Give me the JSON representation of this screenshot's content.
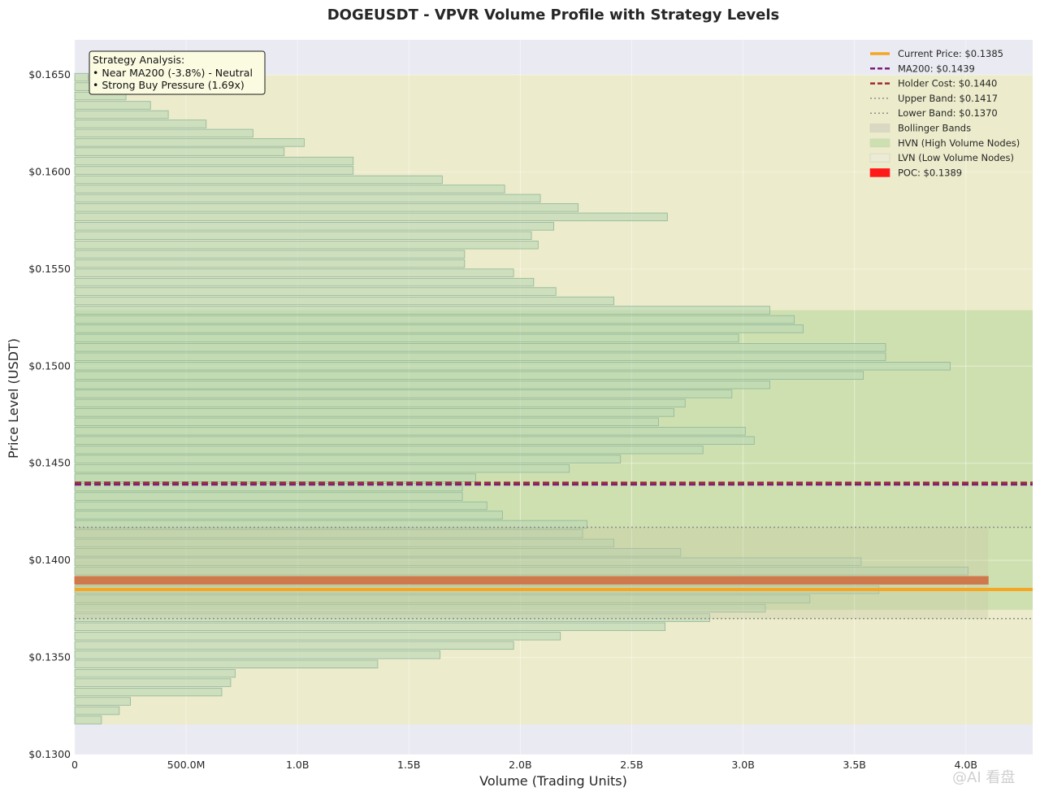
{
  "chart_data": {
    "type": "bar",
    "orientation": "horizontal",
    "title": "DOGEUSDT - VPVR Volume Profile with Strategy Levels",
    "xlabel": "Volume (Trading Units)",
    "ylabel": "Price Level (USDT)",
    "xlim": [
      0,
      4.3
    ],
    "ylim": [
      0.13,
      0.1668
    ],
    "x_ticks": [
      {
        "value": 0,
        "label": "0"
      },
      {
        "value": 0.5,
        "label": "500.0M"
      },
      {
        "value": 1.0,
        "label": "1.0B"
      },
      {
        "value": 1.5,
        "label": "1.5B"
      },
      {
        "value": 2.0,
        "label": "2.0B"
      },
      {
        "value": 2.5,
        "label": "2.5B"
      },
      {
        "value": 3.0,
        "label": "3.0B"
      },
      {
        "value": 3.5,
        "label": "3.5B"
      },
      {
        "value": 4.0,
        "label": "4.0B"
      }
    ],
    "y_ticks": [
      {
        "value": 0.13,
        "label": "$0.1300"
      },
      {
        "value": 0.135,
        "label": "$0.1350"
      },
      {
        "value": 0.14,
        "label": "$0.1400"
      },
      {
        "value": 0.145,
        "label": "$0.1450"
      },
      {
        "value": 0.15,
        "label": "$0.1500"
      },
      {
        "value": 0.155,
        "label": "$0.1550"
      },
      {
        "value": 0.16,
        "label": "$0.1600"
      },
      {
        "value": 0.165,
        "label": "$0.1650"
      }
    ],
    "volume_unit": "billions",
    "bin_size": 0.000479,
    "bins": [
      {
        "price": 0.13178,
        "volume": 0.12
      },
      {
        "price": 0.13226,
        "volume": 0.2
      },
      {
        "price": 0.13274,
        "volume": 0.25
      },
      {
        "price": 0.13322,
        "volume": 0.66
      },
      {
        "price": 0.1337,
        "volume": 0.7
      },
      {
        "price": 0.13418,
        "volume": 0.72
      },
      {
        "price": 0.13466,
        "volume": 1.36
      },
      {
        "price": 0.13514,
        "volume": 1.64
      },
      {
        "price": 0.13562,
        "volume": 1.97
      },
      {
        "price": 0.1361,
        "volume": 2.18
      },
      {
        "price": 0.13658,
        "volume": 2.65
      },
      {
        "price": 0.13705,
        "volume": 2.85
      },
      {
        "price": 0.13753,
        "volume": 3.1
      },
      {
        "price": 0.13801,
        "volume": 3.3
      },
      {
        "price": 0.13849,
        "volume": 3.61
      },
      {
        "price": 0.13897,
        "volume": 4.1,
        "poc": true
      },
      {
        "price": 0.13945,
        "volume": 4.01
      },
      {
        "price": 0.13993,
        "volume": 3.53
      },
      {
        "price": 0.14041,
        "volume": 2.72
      },
      {
        "price": 0.14089,
        "volume": 2.42
      },
      {
        "price": 0.14137,
        "volume": 2.28
      },
      {
        "price": 0.14185,
        "volume": 2.3
      },
      {
        "price": 0.14233,
        "volume": 1.92
      },
      {
        "price": 0.14281,
        "volume": 1.85
      },
      {
        "price": 0.14329,
        "volume": 1.74
      },
      {
        "price": 0.14377,
        "volume": 1.74
      },
      {
        "price": 0.14425,
        "volume": 1.8
      },
      {
        "price": 0.14473,
        "volume": 2.22
      },
      {
        "price": 0.14521,
        "volume": 2.45
      },
      {
        "price": 0.14569,
        "volume": 2.82
      },
      {
        "price": 0.14617,
        "volume": 3.05
      },
      {
        "price": 0.14665,
        "volume": 3.01
      },
      {
        "price": 0.14713,
        "volume": 2.62
      },
      {
        "price": 0.14761,
        "volume": 2.69
      },
      {
        "price": 0.14809,
        "volume": 2.74
      },
      {
        "price": 0.14857,
        "volume": 2.95
      },
      {
        "price": 0.14904,
        "volume": 3.12
      },
      {
        "price": 0.14952,
        "volume": 3.54
      },
      {
        "price": 0.15,
        "volume": 3.93
      },
      {
        "price": 0.15048,
        "volume": 3.64
      },
      {
        "price": 0.15096,
        "volume": 3.64
      },
      {
        "price": 0.15144,
        "volume": 2.98
      },
      {
        "price": 0.15192,
        "volume": 3.27
      },
      {
        "price": 0.1524,
        "volume": 3.23
      },
      {
        "price": 0.15288,
        "volume": 3.12
      },
      {
        "price": 0.15336,
        "volume": 2.42
      },
      {
        "price": 0.15384,
        "volume": 2.16
      },
      {
        "price": 0.15432,
        "volume": 2.06
      },
      {
        "price": 0.1548,
        "volume": 1.97
      },
      {
        "price": 0.15528,
        "volume": 1.75
      },
      {
        "price": 0.15576,
        "volume": 1.75
      },
      {
        "price": 0.15624,
        "volume": 2.08
      },
      {
        "price": 0.15672,
        "volume": 2.05
      },
      {
        "price": 0.1572,
        "volume": 2.15
      },
      {
        "price": 0.15768,
        "volume": 2.66
      },
      {
        "price": 0.15816,
        "volume": 2.26
      },
      {
        "price": 0.15864,
        "volume": 2.09
      },
      {
        "price": 0.15912,
        "volume": 1.93
      },
      {
        "price": 0.1596,
        "volume": 1.65
      },
      {
        "price": 0.16008,
        "volume": 1.25
      },
      {
        "price": 0.16056,
        "volume": 1.25
      },
      {
        "price": 0.16104,
        "volume": 0.94
      },
      {
        "price": 0.16151,
        "volume": 1.03
      },
      {
        "price": 0.16199,
        "volume": 0.8
      },
      {
        "price": 0.16247,
        "volume": 0.59
      },
      {
        "price": 0.16295,
        "volume": 0.42
      },
      {
        "price": 0.16343,
        "volume": 0.34
      },
      {
        "price": 0.16391,
        "volume": 0.23
      },
      {
        "price": 0.16439,
        "volume": 0.1
      },
      {
        "price": 0.16487,
        "volume": 0.06
      }
    ],
    "levels": {
      "current_price": 0.1385,
      "ma200": 0.1439,
      "holder_cost": 0.144,
      "upper_band": 0.1417,
      "lower_band": 0.137,
      "poc": 0.1389
    },
    "zones": {
      "lvn": [
        0.13155,
        0.165
      ],
      "hvn": [
        0.13745,
        0.15288
      ],
      "bollinger": [
        0.137,
        0.1417
      ],
      "bollinger_volume": 4.1
    },
    "legend": {
      "placement": "top-right",
      "entries": [
        {
          "key": "current",
          "label": "Current Price: $0.1385",
          "color": "#f5a623",
          "style": "solid"
        },
        {
          "key": "ma200",
          "label": "MA200: $0.1439",
          "color": "#7b1f7b",
          "style": "dashed"
        },
        {
          "key": "holder",
          "label": "Holder Cost: $0.1440",
          "color": "#9b2d2d",
          "style": "dashed"
        },
        {
          "key": "upper",
          "label": "Upper Band: $0.1417",
          "color": "#8e8e8e",
          "style": "dotted"
        },
        {
          "key": "lower",
          "label": "Lower Band: $0.1370",
          "color": "#8e8e8e",
          "style": "dotted"
        },
        {
          "key": "bollinger",
          "label": "Bollinger Bands",
          "color": "#d9d9c3",
          "style": "patch"
        },
        {
          "key": "hvn",
          "label": "HVN (High Volume Nodes)",
          "color": "#cde0b0",
          "style": "patch"
        },
        {
          "key": "lvn",
          "label": "LVN (Low Volume Nodes)",
          "color": "#ebebd6",
          "style": "patch"
        },
        {
          "key": "poc",
          "label": "POC: $0.1389",
          "color": "#ff1a1a",
          "style": "patch"
        }
      ]
    },
    "annotation": {
      "lines": [
        "Strategy Analysis:",
        "• Near MA200 (-3.8%) - Neutral",
        "• Strong Buy Pressure (1.69x)"
      ]
    },
    "colors": {
      "plot_bg": "#eaeaf2",
      "bar_fill": "#b9d9b5",
      "bar_stroke": "#8fb59a",
      "poc_bar": "#d34d1e",
      "lvn_zone": "#ecebcb",
      "hvn_zone": "#cfe0b0",
      "bollinger_zone": "#c7c9a4"
    },
    "grid": true
  },
  "watermark": "@AI 看盘"
}
